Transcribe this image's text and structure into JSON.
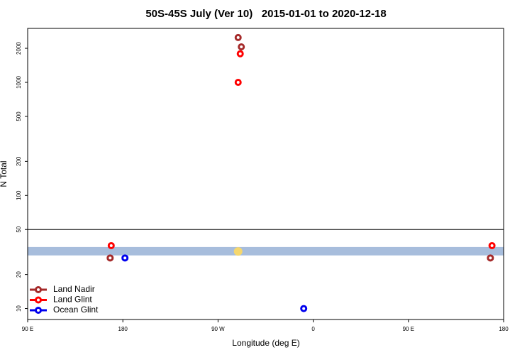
{
  "chart_data": {
    "type": "scatter",
    "title": "50S-45S July (Ver 10)   2015-01-01 to 2020-12-18",
    "x_label": "Longitude (deg E)",
    "y_label": "N Total",
    "xlim": [
      90,
      540
    ],
    "xticks": [
      {
        "value": 90,
        "label": "90 E"
      },
      {
        "value": 180,
        "label": "180"
      },
      {
        "value": 270,
        "label": "90 W"
      },
      {
        "value": 360,
        "label": "0"
      },
      {
        "value": 450,
        "label": "90 E"
      },
      {
        "value": 540,
        "label": "180"
      }
    ],
    "ylim": [
      8,
      3000
    ],
    "yticks": [
      10,
      20,
      50,
      100,
      200,
      500,
      1000,
      2000
    ],
    "log_y": true,
    "hline": 50,
    "band": {
      "y": [
        29.5,
        35
      ],
      "color": "#a7bddc"
    },
    "markers": [
      {
        "x": 289,
        "y": 32,
        "color": "#f5d76e"
      }
    ],
    "legend": "bottom-left",
    "series": [
      {
        "name": "Land Nadir",
        "color": "#a52a2a",
        "x": [
          289,
          292,
          168,
          527.5
        ],
        "values": [
          2490,
          2060,
          28,
          28
        ]
      },
      {
        "name": "Land Glint",
        "color": "#ff0000",
        "x": [
          291,
          289,
          169,
          529
        ],
        "values": [
          1790,
          1000,
          36,
          36
        ]
      },
      {
        "name": "Ocean Glint",
        "color": "#0000ee",
        "x": [
          182,
          351
        ],
        "values": [
          28,
          10
        ]
      }
    ]
  }
}
